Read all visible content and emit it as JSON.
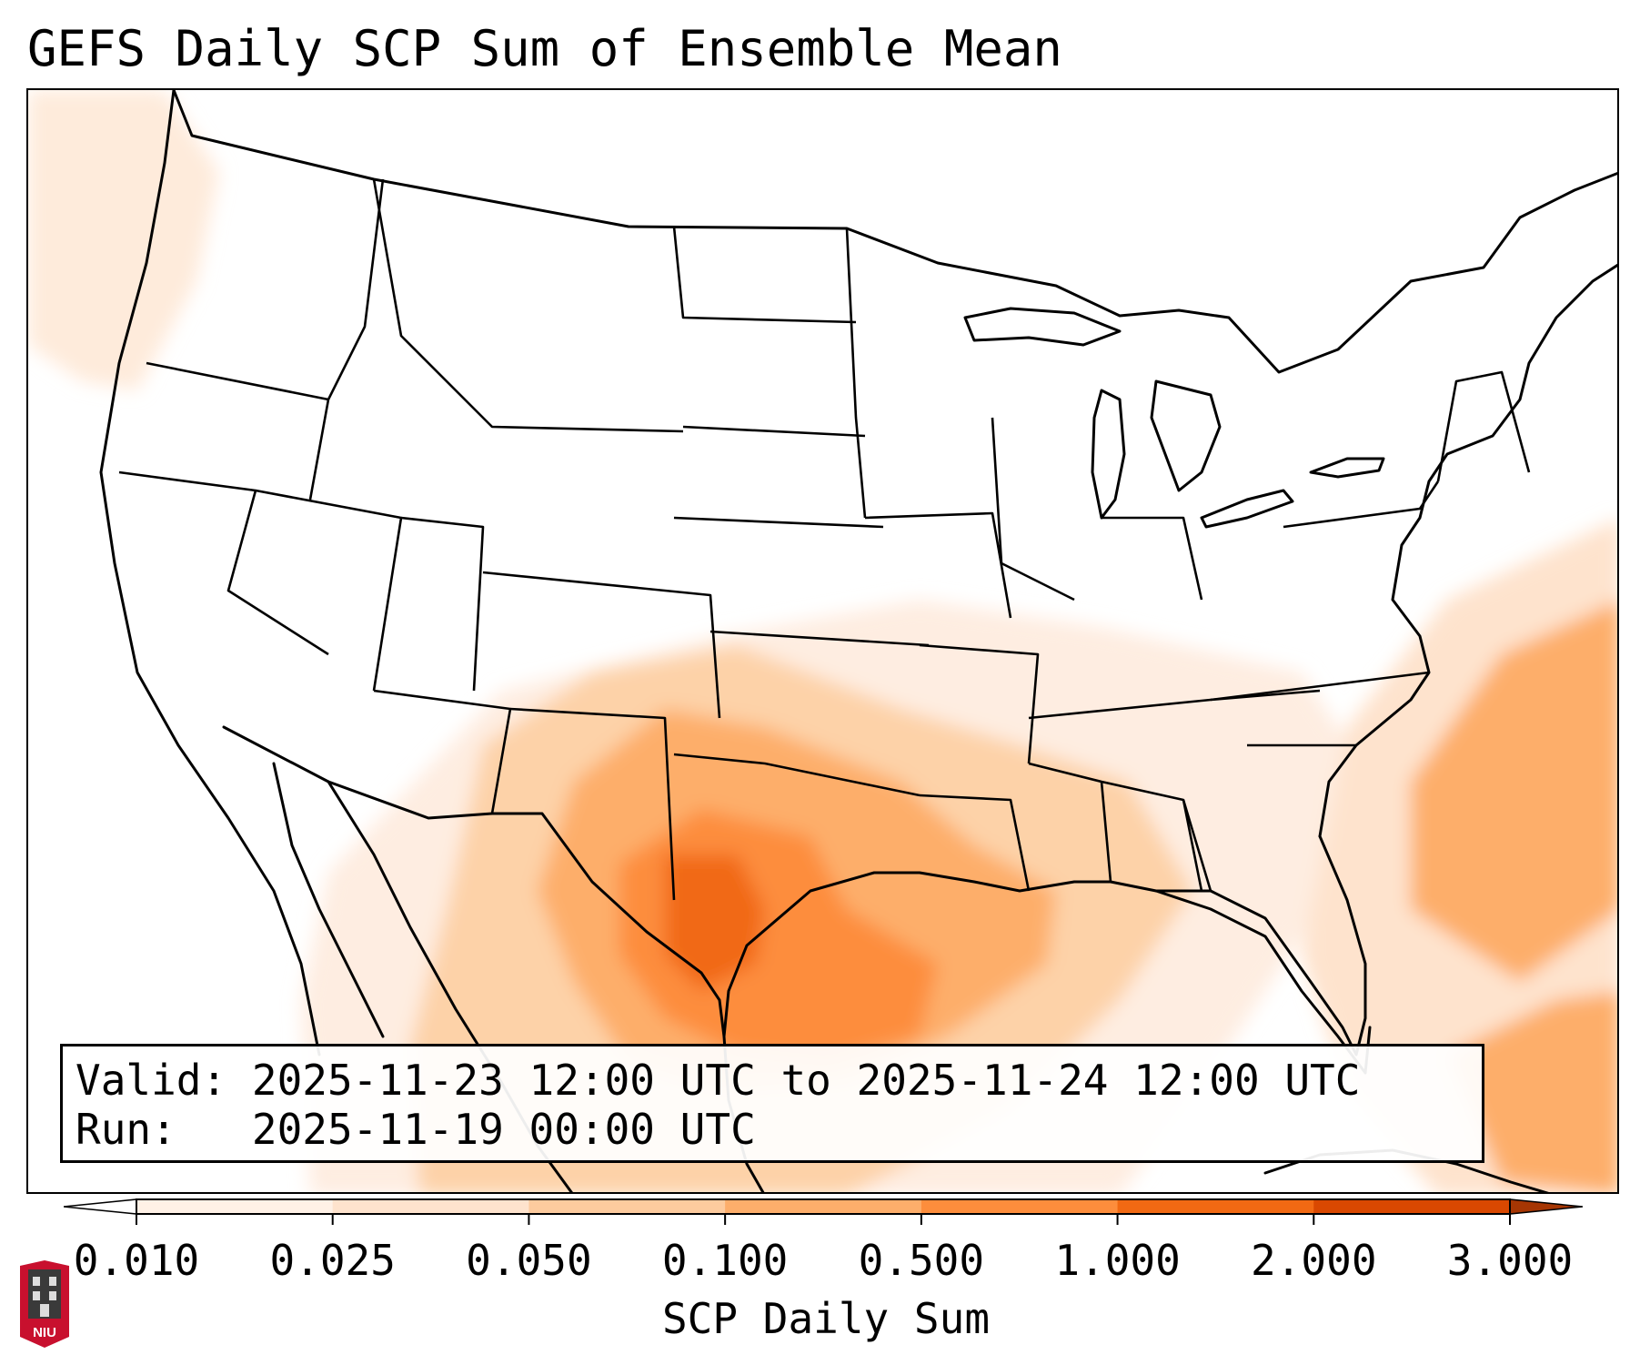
{
  "title": "GEFS Daily SCP Sum of Ensemble Mean",
  "info": {
    "valid_label": "Valid:",
    "valid_value": "2025-11-23 12:00 UTC to 2025-11-24 12:00 UTC",
    "run_label": "Run:",
    "run_value": "2025-11-19 00:00 UTC"
  },
  "colorbar": {
    "title": "SCP Daily Sum",
    "ticks": [
      "0.010",
      "0.025",
      "0.050",
      "0.100",
      "0.500",
      "1.000",
      "2.000",
      "3.000"
    ],
    "colors": [
      "#fff1e6",
      "#fee3cd",
      "#fdcb9e",
      "#fdae6b",
      "#fd8d3c",
      "#f16913",
      "#d94801"
    ],
    "extend": "both",
    "under_color": "#ffffff",
    "over_color": "#a63603"
  },
  "logo": {
    "text": "NIU",
    "colors": {
      "shield": "#c8102e",
      "tower": "#3a3a3a"
    }
  },
  "map": {
    "region": "Contiguous United States",
    "highlight_region": "Texas and Gulf Coast",
    "max_shading": "1.000–2.000"
  }
}
